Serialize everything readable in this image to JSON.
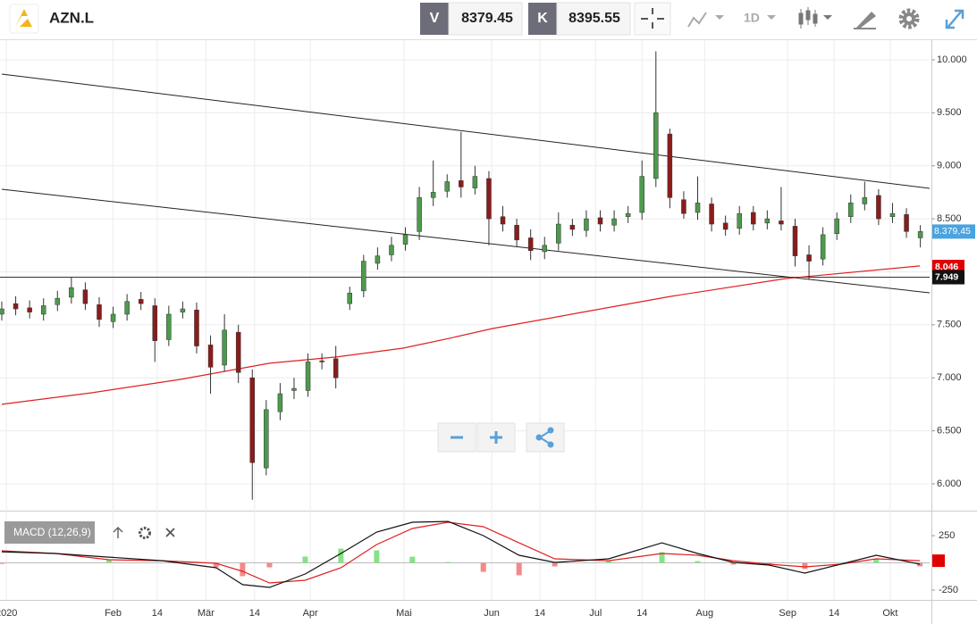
{
  "header": {
    "symbol": "AZN.L",
    "bid": {
      "label": "V",
      "value": 8379.45
    },
    "ask": {
      "label": "K",
      "value": 8395.55
    },
    "timeframe": "1D"
  },
  "chart_data": [
    {
      "type": "candlestick",
      "up_color": "#4d9a4d",
      "down_color": "#8b1c1c",
      "grid": true,
      "xlim": [
        0,
        200
      ],
      "ylim": [
        5747,
        10185
      ],
      "yticks": [
        {
          "value": 10000,
          "label": "10.000"
        },
        {
          "value": 9500,
          "label": "9.500"
        },
        {
          "value": 9000,
          "label": "9.000"
        },
        {
          "value": 8500,
          "label": "8.500"
        },
        {
          "value": 8000,
          "label": "8.000"
        },
        {
          "value": 7500,
          "label": "7.500"
        },
        {
          "value": 7000,
          "label": "7.000"
        },
        {
          "value": 6500,
          "label": "6.500"
        },
        {
          "value": 6000,
          "label": "6.000"
        }
      ],
      "xticks": [
        {
          "value": 1,
          "label": "2020"
        },
        {
          "value": 24,
          "label": "Feb"
        },
        {
          "value": 33.5,
          "label": "14"
        },
        {
          "value": 44,
          "label": "Mär"
        },
        {
          "value": 54.5,
          "label": "14"
        },
        {
          "value": 66.5,
          "label": "Apr"
        },
        {
          "value": 86.7,
          "label": "Mai"
        },
        {
          "value": 105.6,
          "label": "Jun"
        },
        {
          "value": 116,
          "label": "14"
        },
        {
          "value": 128,
          "label": "Jul"
        },
        {
          "value": 138,
          "label": "14"
        },
        {
          "value": 151.5,
          "label": "Aug"
        },
        {
          "value": 169.4,
          "label": "Sep"
        },
        {
          "value": 179.4,
          "label": "14"
        },
        {
          "value": 191.5,
          "label": "Okt"
        }
      ],
      "x": [
        0,
        3,
        6,
        9,
        12,
        15,
        18,
        21,
        24,
        27,
        30,
        33,
        36,
        39,
        42,
        45,
        48,
        51,
        54,
        57,
        60,
        63,
        66,
        69,
        72,
        75,
        78,
        81,
        84,
        87,
        90,
        93,
        96,
        99,
        102,
        105,
        108,
        111,
        114,
        117,
        120,
        123,
        126,
        129,
        132,
        135,
        138,
        141,
        144,
        147,
        150,
        153,
        156,
        159,
        162,
        165,
        168,
        171,
        174,
        177,
        180,
        183,
        186,
        189,
        192,
        195,
        198
      ],
      "open": [
        7600,
        7700,
        7660,
        7600,
        7690,
        7760,
        7830,
        7690,
        7530,
        7600,
        7740,
        7680,
        7360,
        7620,
        7640,
        7310,
        7120,
        7430,
        7000,
        6150,
        6680,
        6880,
        6880,
        7160,
        7180,
        7700,
        7820,
        8080,
        8160,
        8260,
        8380,
        8700,
        8760,
        8860,
        8790,
        8880,
        8520,
        8440,
        8320,
        8190,
        8270,
        8440,
        8390,
        8510,
        8440,
        8520,
        8560,
        8880,
        9300,
        8680,
        8560,
        8640,
        8460,
        8410,
        8560,
        8460,
        8480,
        8430,
        8160,
        8120,
        8360,
        8520,
        8640,
        8720,
        8520,
        8540,
        8320
      ],
      "high": [
        7720,
        7770,
        7730,
        7750,
        7820,
        7950,
        7900,
        7760,
        7670,
        7790,
        7810,
        7750,
        7680,
        7720,
        7710,
        7400,
        7600,
        7500,
        7080,
        6790,
        6950,
        7000,
        7230,
        7230,
        7300,
        7860,
        8160,
        8230,
        8330,
        8420,
        8800,
        9050,
        8920,
        9320,
        9000,
        8950,
        8620,
        8500,
        8400,
        8330,
        8560,
        8500,
        8580,
        8580,
        8580,
        8620,
        9050,
        10080,
        9350,
        8760,
        8900,
        8700,
        8530,
        8620,
        8620,
        8580,
        8800,
        8500,
        8250,
        8420,
        8560,
        8730,
        8850,
        8780,
        8650,
        8600,
        8440
      ],
      "low": [
        7540,
        7590,
        7560,
        7540,
        7630,
        7700,
        7640,
        7480,
        7470,
        7540,
        7640,
        7150,
        7300,
        7560,
        7230,
        6850,
        7060,
        6950,
        5850,
        6080,
        6600,
        6800,
        6820,
        7080,
        6900,
        7640,
        7760,
        8020,
        8100,
        8200,
        8300,
        8620,
        8700,
        8700,
        8730,
        8250,
        8380,
        8240,
        8110,
        8120,
        8200,
        8340,
        8330,
        8380,
        8380,
        8460,
        8490,
        8800,
        8600,
        8500,
        8490,
        8380,
        8340,
        8350,
        8390,
        8400,
        8390,
        8050,
        7930,
        8060,
        8300,
        8460,
        8580,
        8440,
        8460,
        8320,
        8230
      ],
      "close": [
        7650,
        7650,
        7620,
        7680,
        7750,
        7850,
        7700,
        7550,
        7600,
        7720,
        7700,
        7350,
        7600,
        7650,
        7300,
        7100,
        7450,
        7050,
        6200,
        6700,
        6850,
        6900,
        7150,
        7150,
        7000,
        7800,
        8100,
        8150,
        8250,
        8350,
        8700,
        8750,
        8850,
        8800,
        8900,
        8500,
        8450,
        8300,
        8200,
        8250,
        8450,
        8400,
        8500,
        8450,
        8500,
        8550,
        8900,
        9500,
        8700,
        8550,
        8650,
        8450,
        8400,
        8550,
        8450,
        8500,
        8450,
        8150,
        8100,
        8350,
        8500,
        8650,
        8700,
        8500,
        8550,
        8380,
        8380
      ],
      "moving_average": {
        "color": "#e02020",
        "x": [
          0,
          19.2,
          38.5,
          57.7,
          72.1,
          86.5,
          96.2,
          105.8,
          125,
          144.2,
          169.2,
          197.9
        ],
        "values": [
          6750,
          6858,
          6985,
          7137,
          7196,
          7280,
          7370,
          7465,
          7617,
          7768,
          7937,
          8055
        ]
      },
      "trend_lines": [
        {
          "x": [
            0,
            200
          ],
          "values": [
            9865,
            8787
          ]
        },
        {
          "x": [
            0,
            200
          ],
          "values": [
            8779,
            7802
          ]
        }
      ],
      "horizontal_line": {
        "value": 7949,
        "label": "7.949"
      },
      "last_price": {
        "value": 8379.45,
        "label": "8.379,45"
      },
      "ma_label": {
        "value": 8046,
        "label": "8.046"
      }
    },
    {
      "type": "macd",
      "title": "MACD (12,26,9)",
      "xlim": [
        0,
        200
      ],
      "ylim": [
        -340,
        480
      ],
      "yticks": [
        250,
        -250
      ],
      "x": [
        0,
        11.5,
        23.1,
        34.6,
        46.2,
        51.9,
        57.7,
        65.4,
        73.1,
        80.8,
        88.5,
        96.2,
        103.8,
        111.5,
        119.2,
        130.8,
        142.3,
        150,
        157.7,
        165.4,
        173.1,
        180.8,
        188.5,
        197.9
      ],
      "macd": {
        "color": "#111111",
        "values": [
          102,
          86,
          53,
          20,
          -45,
          -200,
          -225,
          -102,
          86,
          283,
          373,
          381,
          250,
          70,
          4,
          37,
          184,
          86,
          4,
          -20,
          -94,
          -12,
          70,
          -12
        ]
      },
      "signal": {
        "color": "#e02020",
        "values": [
          111,
          86,
          29,
          20,
          -4,
          -78,
          -184,
          -160,
          -45,
          168,
          316,
          373,
          332,
          184,
          37,
          20,
          86,
          70,
          20,
          -12,
          -37,
          -12,
          37,
          20
        ]
      },
      "histogram": {
        "up_color": "#86e286",
        "down_color": "#f28a8a",
        "values": [
          -9,
          0,
          24,
          0,
          -41,
          -122,
          -41,
          58,
          131,
          115,
          57,
          8,
          -82,
          -114,
          -33,
          17,
          98,
          16,
          -16,
          -8,
          -57,
          0,
          33,
          -32
        ]
      }
    }
  ]
}
